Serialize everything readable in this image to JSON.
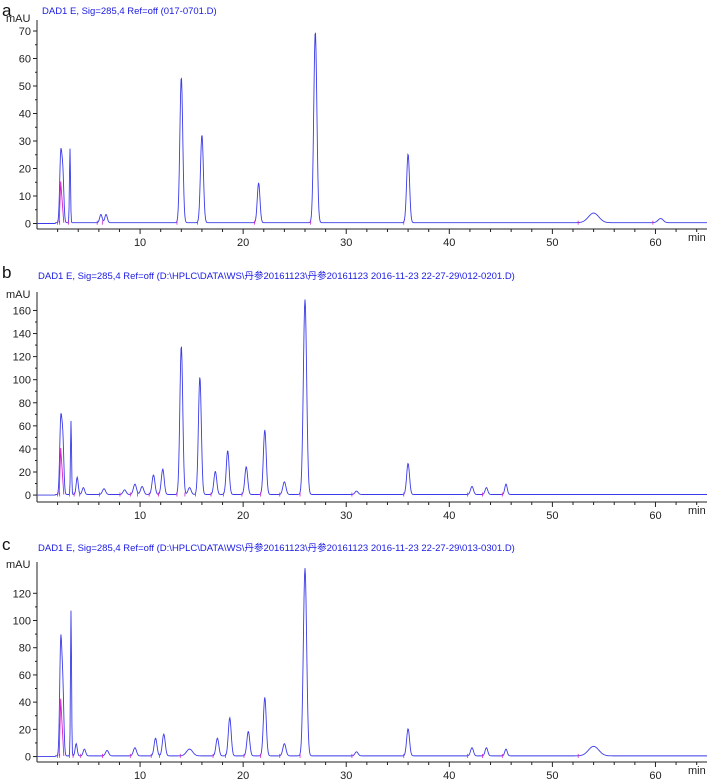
{
  "chart_data": [
    {
      "type": "line",
      "panel_letter": "a",
      "title": "DAD1 E, Sig=285,4 Ref=off (017-0701.D)",
      "ylabel": "mAU",
      "xlabel": "min",
      "xlim": [
        0,
        65
      ],
      "ylim": [
        -2,
        74
      ],
      "yticks": [
        0,
        10,
        20,
        30,
        40,
        50,
        60,
        70
      ],
      "xticks": [
        10,
        20,
        30,
        40,
        50,
        60
      ],
      "baseline": 0.3,
      "colors": {
        "trace": "#3b3be8",
        "integration": "#d020d0",
        "axis": "#222222"
      },
      "peaks": [
        {
          "rt": 2.3,
          "height": 24,
          "width": 0.1
        },
        {
          "rt": 2.5,
          "height": 18,
          "width": 0.1
        },
        {
          "rt": 3.2,
          "height": 27,
          "width": 0.05
        },
        {
          "rt": 6.2,
          "height": 3,
          "width": 0.12
        },
        {
          "rt": 6.7,
          "height": 3,
          "width": 0.12
        },
        {
          "rt": 14.0,
          "height": 53,
          "width": 0.14
        },
        {
          "rt": 16.0,
          "height": 32,
          "width": 0.14
        },
        {
          "rt": 21.5,
          "height": 14.5,
          "width": 0.13
        },
        {
          "rt": 27.0,
          "height": 69.5,
          "width": 0.15
        },
        {
          "rt": 36.0,
          "height": 25,
          "width": 0.14
        },
        {
          "rt": 54.0,
          "height": 3.5,
          "width": 0.5
        },
        {
          "rt": 60.5,
          "height": 1.5,
          "width": 0.25
        }
      ]
    },
    {
      "type": "line",
      "panel_letter": "b",
      "title": "DAD1 E, Sig=285,4 Ref=off (D:\\HPLC\\DATA\\WS\\丹参20161123\\丹参20161123 2016-11-23 22-27-29\\012-0201.D)",
      "ylabel": "mAU",
      "xlabel": "min",
      "xlim": [
        0,
        65
      ],
      "ylim": [
        -6,
        176
      ],
      "yticks": [
        0,
        20,
        40,
        60,
        80,
        100,
        120,
        140,
        160
      ],
      "xticks": [
        10,
        20,
        30,
        40,
        50,
        60
      ],
      "baseline": 0.5,
      "colors": {
        "trace": "#3b3be8",
        "integration": "#d020d0",
        "axis": "#222222"
      },
      "peaks": [
        {
          "rt": 2.3,
          "height": 62,
          "width": 0.1
        },
        {
          "rt": 2.5,
          "height": 48,
          "width": 0.1
        },
        {
          "rt": 3.3,
          "height": 64,
          "width": 0.05
        },
        {
          "rt": 3.9,
          "height": 15,
          "width": 0.1
        },
        {
          "rt": 4.5,
          "height": 6,
          "width": 0.12
        },
        {
          "rt": 6.5,
          "height": 5,
          "width": 0.15
        },
        {
          "rt": 8.5,
          "height": 4,
          "width": 0.15
        },
        {
          "rt": 9.5,
          "height": 9,
          "width": 0.15
        },
        {
          "rt": 10.2,
          "height": 7,
          "width": 0.15
        },
        {
          "rt": 11.3,
          "height": 17,
          "width": 0.14
        },
        {
          "rt": 12.2,
          "height": 22,
          "width": 0.14
        },
        {
          "rt": 14.0,
          "height": 129,
          "width": 0.14
        },
        {
          "rt": 14.8,
          "height": 6,
          "width": 0.15
        },
        {
          "rt": 15.8,
          "height": 102,
          "width": 0.14
        },
        {
          "rt": 17.3,
          "height": 20,
          "width": 0.14
        },
        {
          "rt": 18.5,
          "height": 38,
          "width": 0.14
        },
        {
          "rt": 20.3,
          "height": 24,
          "width": 0.14
        },
        {
          "rt": 22.1,
          "height": 56,
          "width": 0.14
        },
        {
          "rt": 24.0,
          "height": 11,
          "width": 0.15
        },
        {
          "rt": 26.0,
          "height": 169,
          "width": 0.16
        },
        {
          "rt": 31.0,
          "height": 3,
          "width": 0.15
        },
        {
          "rt": 36.0,
          "height": 27,
          "width": 0.14
        },
        {
          "rt": 42.2,
          "height": 7,
          "width": 0.14
        },
        {
          "rt": 43.6,
          "height": 6,
          "width": 0.13
        },
        {
          "rt": 45.5,
          "height": 9,
          "width": 0.12
        }
      ]
    },
    {
      "type": "line",
      "panel_letter": "c",
      "title": "DAD1 E, Sig=285,4 Ref=off (D:\\HPLC\\DATA\\WS\\丹参20161123\\丹参20161123 2016-11-23 22-27-29\\013-0301.D)",
      "ylabel": "mAU",
      "xlabel": "min",
      "xlim": [
        0,
        65
      ],
      "ylim": [
        -4,
        143
      ],
      "yticks": [
        0,
        20,
        40,
        60,
        80,
        100,
        120
      ],
      "xticks": [
        10,
        20,
        30,
        40,
        50,
        60
      ],
      "baseline": 0.5,
      "colors": {
        "trace": "#3b3be8",
        "integration": "#d020d0",
        "axis": "#222222"
      },
      "peaks": [
        {
          "rt": 2.3,
          "height": 81,
          "width": 0.1
        },
        {
          "rt": 2.5,
          "height": 50,
          "width": 0.1
        },
        {
          "rt": 3.3,
          "height": 107,
          "width": 0.05
        },
        {
          "rt": 3.8,
          "height": 9,
          "width": 0.1
        },
        {
          "rt": 4.6,
          "height": 5,
          "width": 0.12
        },
        {
          "rt": 6.8,
          "height": 4,
          "width": 0.15
        },
        {
          "rt": 9.5,
          "height": 6,
          "width": 0.15
        },
        {
          "rt": 11.5,
          "height": 13,
          "width": 0.14
        },
        {
          "rt": 12.3,
          "height": 16,
          "width": 0.14
        },
        {
          "rt": 14.8,
          "height": 5,
          "width": 0.3
        },
        {
          "rt": 17.5,
          "height": 13,
          "width": 0.14
        },
        {
          "rt": 18.7,
          "height": 28,
          "width": 0.14
        },
        {
          "rt": 20.5,
          "height": 18,
          "width": 0.14
        },
        {
          "rt": 22.1,
          "height": 43,
          "width": 0.14
        },
        {
          "rt": 24.0,
          "height": 9,
          "width": 0.15
        },
        {
          "rt": 26.0,
          "height": 138,
          "width": 0.16
        },
        {
          "rt": 31.0,
          "height": 3,
          "width": 0.15
        },
        {
          "rt": 36.0,
          "height": 20,
          "width": 0.14
        },
        {
          "rt": 42.2,
          "height": 6,
          "width": 0.14
        },
        {
          "rt": 43.6,
          "height": 6,
          "width": 0.13
        },
        {
          "rt": 45.5,
          "height": 5,
          "width": 0.12
        },
        {
          "rt": 54.0,
          "height": 7,
          "width": 0.5
        }
      ]
    }
  ]
}
